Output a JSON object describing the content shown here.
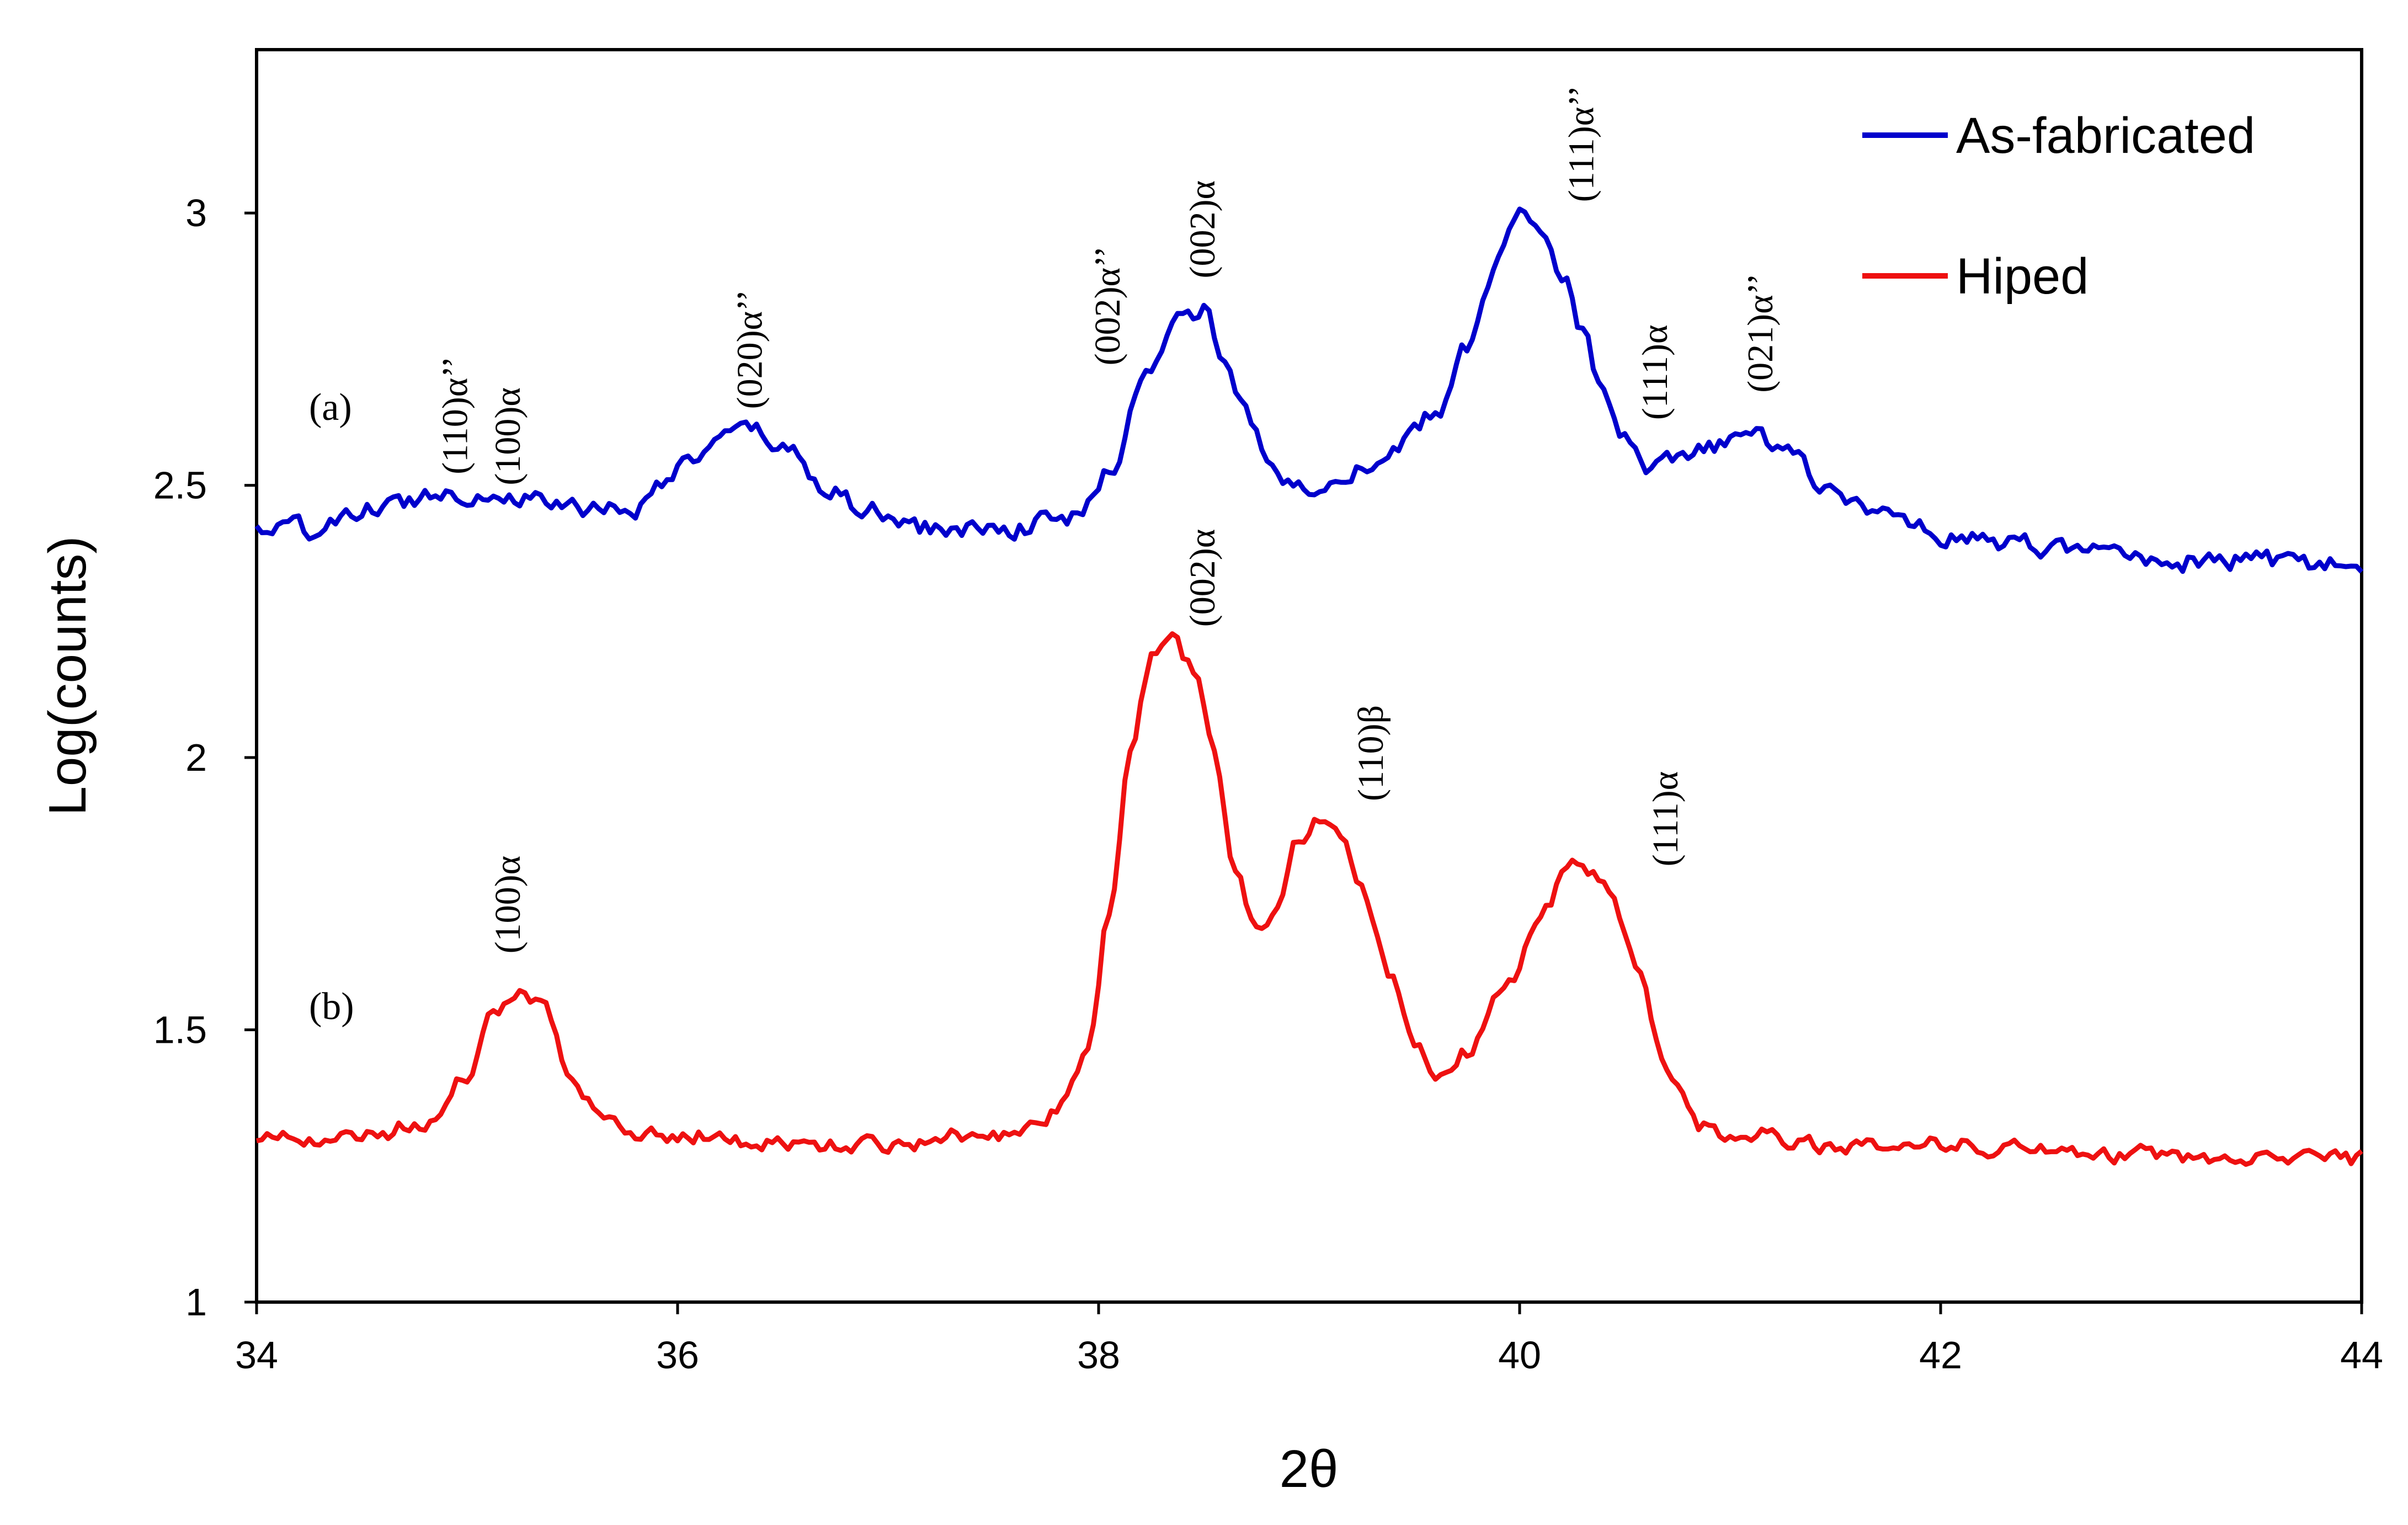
{
  "chart_data": {
    "type": "line",
    "xlabel": "2θ",
    "ylabel": "Log(counts)",
    "xlim": [
      34,
      44
    ],
    "ylim": [
      1,
      3.3
    ],
    "x_ticks": [
      34,
      36,
      38,
      40,
      42,
      44
    ],
    "x_tick_labels": [
      "34",
      "36",
      "38",
      "40",
      "42",
      "44"
    ],
    "y_ticks": [
      1,
      1.5,
      2,
      2.5,
      3
    ],
    "y_tick_labels": [
      "1",
      "1.5",
      "2",
      "2.5",
      "3"
    ],
    "grid": false,
    "legend": "top-right",
    "series": [
      {
        "name": "As-fabricated",
        "color": "#0000cc",
        "label": "(a)",
        "noise": 0.03,
        "points": [
          [
            34.0,
            2.42
          ],
          [
            34.3,
            2.42
          ],
          [
            34.6,
            2.46
          ],
          [
            34.9,
            2.49
          ],
          [
            35.2,
            2.48
          ],
          [
            35.5,
            2.46
          ],
          [
            35.8,
            2.46
          ],
          [
            36.0,
            2.53
          ],
          [
            36.2,
            2.58
          ],
          [
            36.35,
            2.6
          ],
          [
            36.5,
            2.57
          ],
          [
            36.7,
            2.5
          ],
          [
            36.9,
            2.45
          ],
          [
            37.2,
            2.42
          ],
          [
            37.5,
            2.42
          ],
          [
            37.9,
            2.44
          ],
          [
            38.05,
            2.52
          ],
          [
            38.2,
            2.68
          ],
          [
            38.3,
            2.75
          ],
          [
            38.4,
            2.82
          ],
          [
            38.5,
            2.82
          ],
          [
            38.6,
            2.72
          ],
          [
            38.7,
            2.63
          ],
          [
            38.8,
            2.55
          ],
          [
            38.9,
            2.5
          ],
          [
            39.0,
            2.5
          ],
          [
            39.2,
            2.53
          ],
          [
            39.4,
            2.56
          ],
          [
            39.6,
            2.63
          ],
          [
            39.75,
            2.75
          ],
          [
            39.9,
            2.92
          ],
          [
            40.0,
            2.99
          ],
          [
            40.1,
            2.98
          ],
          [
            40.2,
            2.9
          ],
          [
            40.3,
            2.78
          ],
          [
            40.4,
            2.66
          ],
          [
            40.5,
            2.58
          ],
          [
            40.6,
            2.53
          ],
          [
            40.75,
            2.54
          ],
          [
            40.95,
            2.57
          ],
          [
            41.1,
            2.6
          ],
          [
            41.25,
            2.57
          ],
          [
            41.45,
            2.5
          ],
          [
            41.7,
            2.45
          ],
          [
            42.0,
            2.41
          ],
          [
            42.3,
            2.39
          ],
          [
            42.7,
            2.38
          ],
          [
            43.1,
            2.36
          ],
          [
            43.5,
            2.36
          ],
          [
            44.0,
            2.35
          ]
        ]
      },
      {
        "name": "Hiped",
        "color": "#ee1111",
        "label": "(b)",
        "noise": 0.025,
        "points": [
          [
            34.0,
            1.3
          ],
          [
            34.5,
            1.3
          ],
          [
            34.8,
            1.33
          ],
          [
            35.0,
            1.42
          ],
          [
            35.1,
            1.52
          ],
          [
            35.25,
            1.58
          ],
          [
            35.35,
            1.55
          ],
          [
            35.5,
            1.42
          ],
          [
            35.65,
            1.33
          ],
          [
            35.9,
            1.31
          ],
          [
            36.5,
            1.29
          ],
          [
            37.0,
            1.29
          ],
          [
            37.5,
            1.31
          ],
          [
            37.8,
            1.35
          ],
          [
            37.95,
            1.45
          ],
          [
            38.05,
            1.72
          ],
          [
            38.15,
            2.0
          ],
          [
            38.25,
            2.18
          ],
          [
            38.35,
            2.21
          ],
          [
            38.45,
            2.16
          ],
          [
            38.55,
            2.0
          ],
          [
            38.65,
            1.8
          ],
          [
            38.75,
            1.68
          ],
          [
            38.85,
            1.72
          ],
          [
            38.95,
            1.85
          ],
          [
            39.05,
            1.89
          ],
          [
            39.15,
            1.86
          ],
          [
            39.25,
            1.76
          ],
          [
            39.4,
            1.6
          ],
          [
            39.5,
            1.48
          ],
          [
            39.6,
            1.42
          ],
          [
            39.75,
            1.46
          ],
          [
            39.95,
            1.58
          ],
          [
            40.1,
            1.72
          ],
          [
            40.25,
            1.8
          ],
          [
            40.4,
            1.77
          ],
          [
            40.55,
            1.62
          ],
          [
            40.7,
            1.42
          ],
          [
            40.85,
            1.32
          ],
          [
            41.0,
            1.31
          ],
          [
            41.5,
            1.29
          ],
          [
            42.0,
            1.29
          ],
          [
            42.5,
            1.28
          ],
          [
            43.0,
            1.27
          ],
          [
            43.5,
            1.26
          ],
          [
            44.0,
            1.26
          ]
        ]
      }
    ],
    "annotations": [
      {
        "text": "(110)α’’",
        "x": 35.0,
        "y": 2.52
      },
      {
        "text": "(100)α",
        "x": 35.25,
        "y": 2.5
      },
      {
        "text": "(020)α’’",
        "x": 36.4,
        "y": 2.64
      },
      {
        "text": "(002)α’’",
        "x": 38.1,
        "y": 2.72
      },
      {
        "text": "(002)α",
        "x": 38.55,
        "y": 2.88
      },
      {
        "text": "(111)α’’",
        "x": 40.35,
        "y": 3.02
      },
      {
        "text": "(111)α",
        "x": 40.7,
        "y": 2.62
      },
      {
        "text": "(021)α’’",
        "x": 41.2,
        "y": 2.67
      },
      {
        "text": "(002)α",
        "x": 38.55,
        "y": 2.24
      },
      {
        "text": "(110)β",
        "x": 39.35,
        "y": 1.92
      },
      {
        "text": "(111)α",
        "x": 40.75,
        "y": 1.8
      },
      {
        "text": "(100)α",
        "x": 35.25,
        "y": 1.64
      }
    ]
  }
}
